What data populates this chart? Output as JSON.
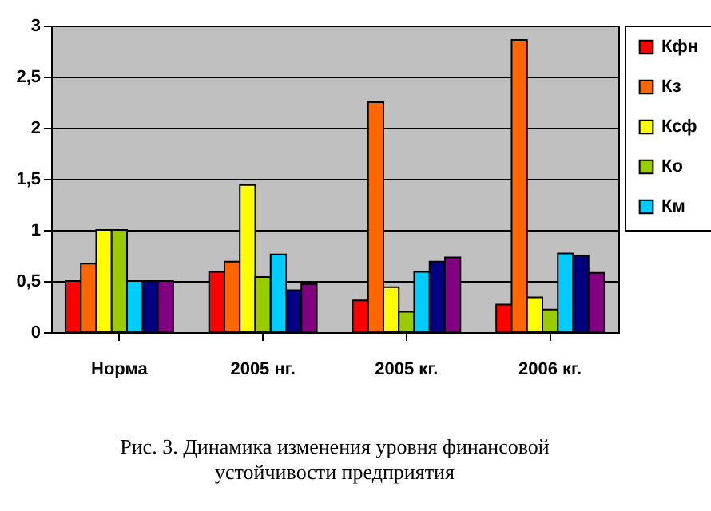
{
  "chart_data": {
    "type": "bar",
    "title": "Рис. 3. Динамика изменения уровня  финансовой\nустойчивости предприятия",
    "categories": [
      "Норма",
      "2005 нг.",
      "2005 кг.",
      "2006 кг."
    ],
    "series": [
      {
        "name": "Кфн",
        "color": "#ff0000",
        "values": [
          0.5,
          0.59,
          0.31,
          0.27
        ]
      },
      {
        "name": "Кз",
        "color": "#ff6600",
        "values": [
          0.67,
          0.69,
          2.25,
          2.86
        ]
      },
      {
        "name": "Ксф",
        "color": "#ffff00",
        "values": [
          1,
          1.44,
          0.44,
          0.34
        ]
      },
      {
        "name": "Ко",
        "color": "#99cc00",
        "values": [
          1,
          0.54,
          0.2,
          0.22
        ]
      },
      {
        "name": "Км",
        "color": "#00ccff",
        "values": [
          0.5,
          0.76,
          0.59,
          0.77
        ]
      },
      {
        "color": "#000080",
        "values": [
          0.5,
          0.41,
          0.69,
          0.75
        ]
      },
      {
        "color": "#800080",
        "values": [
          0.5,
          0.47,
          0.73,
          0.58
        ]
      }
    ],
    "ylim": [
      0,
      3
    ],
    "yticks": [
      0,
      {
        "value": 0.5,
        "label": "0,5"
      },
      1,
      {
        "value": 1.5,
        "label": "1,5"
      },
      2,
      {
        "value": 2.5,
        "label": "2,5"
      },
      3
    ],
    "grid": "y",
    "legend": "right"
  }
}
